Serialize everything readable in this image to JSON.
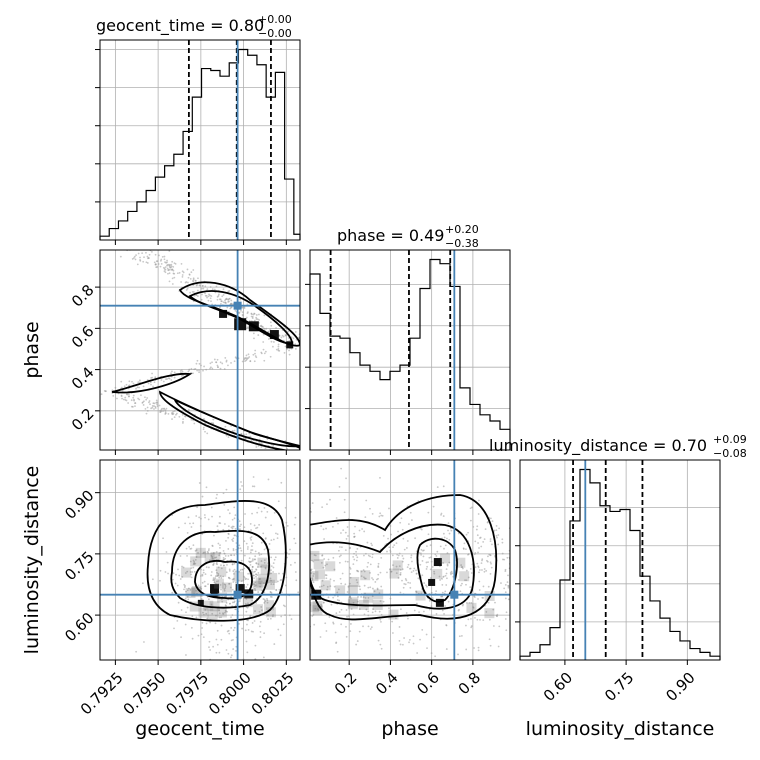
{
  "chart_data": {
    "type": "corner",
    "parameters": [
      "geocent_time",
      "phase",
      "luminosity_distance"
    ],
    "truths": {
      "geocent_time": 0.79965,
      "phase": 0.71,
      "luminosity_distance": 0.65
    },
    "ranges": {
      "geocent_time": [
        0.7916,
        0.8033
      ],
      "phase": [
        0.01,
        0.98
      ],
      "luminosity_distance": [
        0.49,
        0.98
      ]
    },
    "grid": true,
    "diagonal": [
      {
        "param": "geocent_time",
        "title_main": "geocent_time = 0.80",
        "title_sup": "+0.00",
        "title_sub": "−0.00",
        "quantiles": [
          0.7968,
          0.7996,
          0.8016
        ],
        "bin_edges": [
          0.7916,
          0.79214,
          0.79268,
          0.79322,
          0.79376,
          0.7943,
          0.79484,
          0.79538,
          0.79592,
          0.79646,
          0.797,
          0.79754,
          0.79808,
          0.79862,
          0.79916,
          0.7997,
          0.80024,
          0.80078,
          0.80132,
          0.80186,
          0.8024,
          0.80294,
          0.8033
        ],
        "counts": [
          2,
          6,
          10,
          15,
          20,
          26,
          33,
          39,
          45,
          57,
          75,
          90,
          89,
          86,
          93,
          100,
          97,
          92,
          75,
          88,
          32,
          3
        ],
        "xticks": [
          0.7925,
          0.795,
          0.7975,
          0.8,
          0.8025
        ],
        "xtick_labels": [
          "0.7925",
          "0.7950",
          "0.7975",
          "0.8000",
          "0.8025"
        ],
        "yticks": [
          20,
          40,
          60,
          80,
          100
        ]
      },
      {
        "param": "phase",
        "title_main": "phase = 0.49",
        "title_sup": "+0.20",
        "title_sub": "−0.38",
        "quantiles": [
          0.11,
          0.49,
          0.69
        ],
        "bin_edges": [
          0.01,
          0.0585,
          0.107,
          0.1555,
          0.204,
          0.2525,
          0.301,
          0.3495,
          0.398,
          0.4465,
          0.495,
          0.5435,
          0.592,
          0.6405,
          0.689,
          0.7375,
          0.786,
          0.8345,
          0.883,
          0.9315,
          0.98
        ],
        "counts": [
          85,
          66,
          55,
          54,
          47,
          41,
          38,
          34,
          38,
          41,
          54,
          78,
          92,
          90,
          79,
          30,
          22,
          17,
          14,
          10
        ],
        "xticks": [
          0.2,
          0.4,
          0.6,
          0.8
        ],
        "xtick_labels": [
          "0.2",
          "0.4",
          "0.6",
          "0.8"
        ],
        "yticks": [
          20,
          40,
          60,
          80
        ]
      },
      {
        "param": "luminosity_distance",
        "title_main": "luminosity_distance = 0.70",
        "title_sup": "+0.09",
        "title_sub": "−0.08",
        "quantiles": [
          0.62,
          0.7,
          0.79
        ],
        "bin_edges": [
          0.49,
          0.5145,
          0.539,
          0.5635,
          0.588,
          0.6125,
          0.637,
          0.6615,
          0.686,
          0.7105,
          0.735,
          0.7595,
          0.784,
          0.8085,
          0.833,
          0.8575,
          0.882,
          0.9065,
          0.931,
          0.9555,
          0.98
        ],
        "counts": [
          2,
          4,
          8,
          17,
          42,
          73,
          100,
          93,
          81,
          78,
          79,
          68,
          44,
          31,
          22,
          15,
          10,
          6,
          4,
          2
        ],
        "xticks": [
          0.6,
          0.75,
          0.9
        ],
        "xtick_labels": [
          "0.60",
          "0.75",
          "0.90"
        ],
        "yticks": [
          20,
          40,
          60,
          80
        ]
      }
    ],
    "offdiagonal": [
      {
        "x": "geocent_time",
        "y": "phase",
        "yticks": [
          0.2,
          0.4,
          0.6,
          0.8
        ],
        "ytick_labels": [
          "0.2",
          "0.4",
          "0.6",
          "0.8"
        ]
      },
      {
        "x": "geocent_time",
        "y": "luminosity_distance",
        "yticks": [
          0.6,
          0.75,
          0.9
        ],
        "ytick_labels": [
          "0.60",
          "0.75",
          "0.90"
        ]
      },
      {
        "x": "phase",
        "y": "luminosity_distance"
      }
    ],
    "axis_labels": {
      "x_geocent_time": "geocent_time",
      "x_phase": "phase",
      "x_luminosity_distance": "luminosity_distance",
      "y_phase": "phase",
      "y_luminosity_distance": "luminosity_distance"
    },
    "colors": {
      "truth": "#4682b4",
      "lines": "#000000",
      "grid": "#b0b0b0",
      "samples": "#9a9a9a"
    }
  }
}
